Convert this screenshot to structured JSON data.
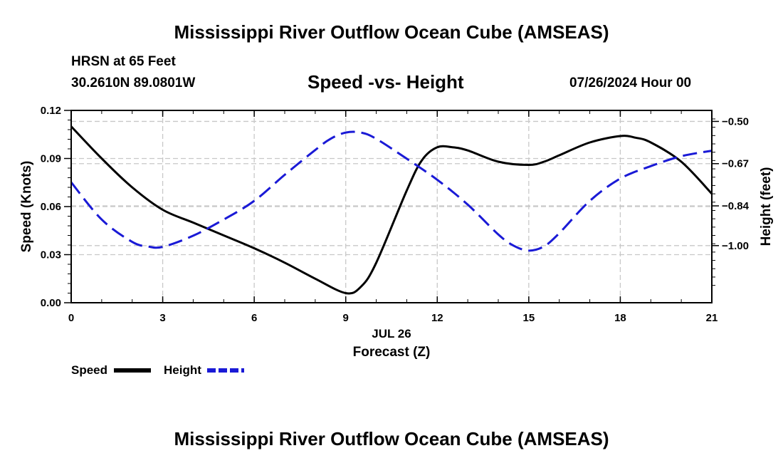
{
  "page": {
    "title_top": "Mississippi River Outflow Ocean Cube (AMSEAS)",
    "title_bottom": "Mississippi River Outflow Ocean Cube (AMSEAS)",
    "station": "HRSN at 65 Feet",
    "coords": "30.2610N  89.0801W",
    "datetime": "07/26/2024 Hour 00"
  },
  "colors": {
    "speed": "#000000",
    "height": "#1a1ad6",
    "grid": "#c8c8c8"
  },
  "chart_data": {
    "type": "line",
    "title": "Speed -vs- Height",
    "xlabel": "Forecast (Z)",
    "xsublabel": "JUL 26",
    "ylabel": "Speed (Knots)",
    "y2label": "Height (feet)",
    "xlim": [
      0,
      21
    ],
    "ylim": [
      0,
      0.12
    ],
    "y2lim": [
      -1.2299,
      -0.4557
    ],
    "xticks": [
      0,
      3,
      6,
      9,
      12,
      15,
      18,
      21
    ],
    "xtick_labels": [
      "0",
      "3",
      "6",
      "9",
      "12",
      "15",
      "18",
      "21"
    ],
    "yticks": [
      0,
      0.03,
      0.06,
      0.09,
      0.12
    ],
    "ytick_labels": [
      "0.00",
      "0.03",
      "0.06",
      "0.09",
      "0.12"
    ],
    "y2ticks": [
      -1.0,
      -0.84,
      -0.67,
      -0.5
    ],
    "y2tick_labels": [
      "−1.00",
      "−0.84",
      "−0.67",
      "−0.50"
    ],
    "grid": true,
    "series": [
      {
        "name": "Speed",
        "axis": "left",
        "style": "solid",
        "x": [
          0,
          1,
          2,
          3,
          4,
          5,
          6,
          7,
          8,
          9,
          9.5,
          10,
          11,
          11.5,
          12,
          12.5,
          13,
          14,
          15,
          15.5,
          16,
          17,
          18,
          18.5,
          19,
          20,
          21
        ],
        "values": [
          0.11,
          0.09,
          0.072,
          0.058,
          0.05,
          0.042,
          0.034,
          0.025,
          0.015,
          0.006,
          0.01,
          0.025,
          0.07,
          0.089,
          0.097,
          0.097,
          0.095,
          0.088,
          0.086,
          0.088,
          0.092,
          0.1,
          0.104,
          0.103,
          0.1,
          0.088,
          0.068
        ]
      },
      {
        "name": "Height",
        "axis": "right",
        "style": "dashed",
        "x": [
          0,
          1,
          2,
          2.5,
          3,
          4,
          5,
          6,
          7,
          8,
          8.5,
          9,
          9.5,
          10,
          11,
          12,
          13,
          14,
          14.5,
          15,
          15.5,
          16,
          17,
          18,
          19,
          20,
          21
        ],
        "values": [
          -0.745,
          -0.895,
          -0.985,
          -1.003,
          -1.005,
          -0.96,
          -0.895,
          -0.82,
          -0.715,
          -0.615,
          -0.57,
          -0.545,
          -0.545,
          -0.57,
          -0.65,
          -0.735,
          -0.835,
          -0.955,
          -1.0,
          -1.02,
          -1.003,
          -0.95,
          -0.82,
          -0.73,
          -0.68,
          -0.64,
          -0.618
        ]
      }
    ]
  }
}
